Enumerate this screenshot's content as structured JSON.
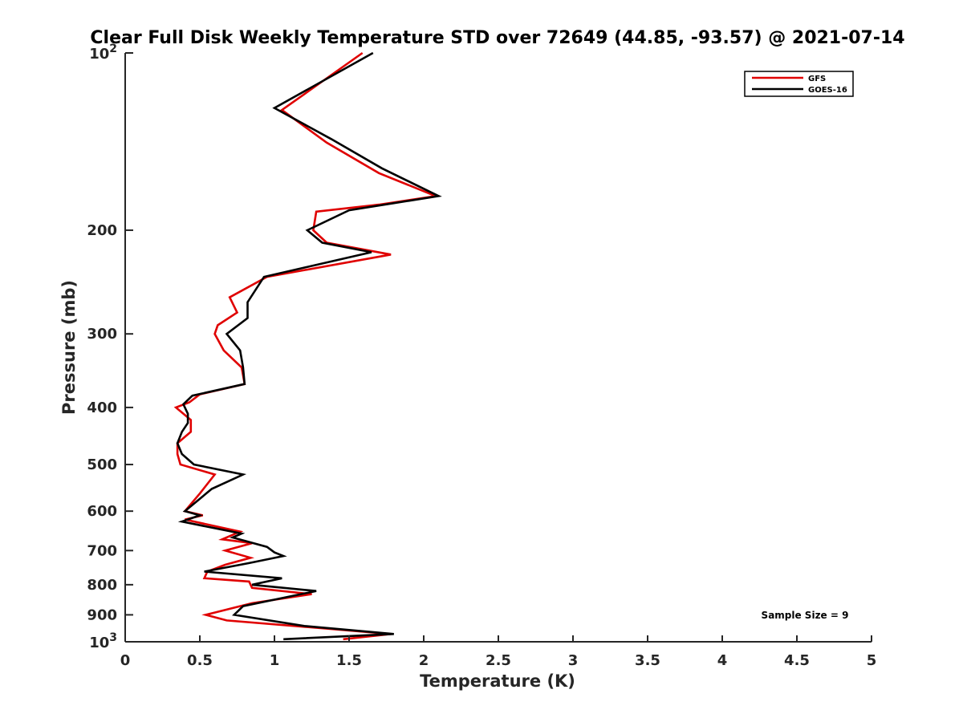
{
  "chart_data": {
    "type": "line",
    "title": "Clear Full Disk Weekly Temperature STD over 72649 (44.85, -93.57) @ 2021-07-14",
    "xlabel": "Temperature (K)",
    "ylabel": "Pressure (mb)",
    "xlim": [
      0,
      5
    ],
    "ylim": [
      100,
      1000
    ],
    "y_scale": "log",
    "y_reversed": true,
    "grid": false,
    "legend_position": "top-right",
    "x_ticks": [
      0,
      0.5,
      1,
      1.5,
      2,
      2.5,
      3,
      3.5,
      4,
      4.5,
      5
    ],
    "x_tick_labels": [
      "0",
      "0.5",
      "1",
      "1.5",
      "2",
      "2.5",
      "3",
      "3.5",
      "4",
      "4.5",
      "5"
    ],
    "y_ticks": [
      200,
      300,
      400,
      500,
      600,
      700,
      800,
      900
    ],
    "y_tick_labels": [
      "200",
      "300",
      "400",
      "500",
      "600",
      "700",
      "800",
      "900"
    ],
    "y_decade_labels": [
      {
        "value": 100,
        "base": "10",
        "exp": "2"
      },
      {
        "value": 1000,
        "base": "10",
        "exp": "3"
      }
    ],
    "series": [
      {
        "name": "GFS",
        "color": "#e00000",
        "points": [
          [
            1.59,
            100
          ],
          [
            1.05,
            125
          ],
          [
            1.35,
            142
          ],
          [
            1.7,
            160
          ],
          [
            2.08,
            175
          ],
          [
            1.7,
            181
          ],
          [
            1.28,
            186
          ],
          [
            1.26,
            200
          ],
          [
            1.35,
            210
          ],
          [
            1.78,
            220
          ],
          [
            0.95,
            240
          ],
          [
            0.7,
            260
          ],
          [
            0.75,
            276
          ],
          [
            0.62,
            290
          ],
          [
            0.6,
            300
          ],
          [
            0.66,
            320
          ],
          [
            0.78,
            342
          ],
          [
            0.8,
            365
          ],
          [
            0.5,
            380
          ],
          [
            0.43,
            392
          ],
          [
            0.34,
            400
          ],
          [
            0.44,
            420
          ],
          [
            0.44,
            440
          ],
          [
            0.35,
            460
          ],
          [
            0.35,
            480
          ],
          [
            0.37,
            500
          ],
          [
            0.6,
            520
          ],
          [
            0.5,
            560
          ],
          [
            0.4,
            600
          ],
          [
            0.52,
            610
          ],
          [
            0.4,
            620
          ],
          [
            0.77,
            650
          ],
          [
            0.65,
            670
          ],
          [
            0.85,
            680
          ],
          [
            0.67,
            700
          ],
          [
            0.84,
            720
          ],
          [
            0.67,
            740
          ],
          [
            0.55,
            760
          ],
          [
            0.53,
            780
          ],
          [
            0.83,
            790
          ],
          [
            0.85,
            810
          ],
          [
            1.25,
            830
          ],
          [
            0.85,
            860
          ],
          [
            0.54,
            900
          ],
          [
            0.68,
            920
          ],
          [
            1.35,
            950
          ],
          [
            1.78,
            970
          ],
          [
            1.46,
            990
          ]
        ]
      },
      {
        "name": "GOES-16",
        "color": "#000000",
        "points": [
          [
            1.66,
            100
          ],
          [
            1.0,
            124
          ],
          [
            1.38,
            140
          ],
          [
            1.72,
            157
          ],
          [
            2.1,
            175
          ],
          [
            1.5,
            185
          ],
          [
            1.22,
            200
          ],
          [
            1.32,
            210
          ],
          [
            1.65,
            218
          ],
          [
            0.93,
            240
          ],
          [
            0.82,
            265
          ],
          [
            0.82,
            282
          ],
          [
            0.68,
            300
          ],
          [
            0.77,
            320
          ],
          [
            0.79,
            342
          ],
          [
            0.8,
            365
          ],
          [
            0.45,
            382
          ],
          [
            0.39,
            395
          ],
          [
            0.42,
            410
          ],
          [
            0.42,
            425
          ],
          [
            0.38,
            440
          ],
          [
            0.35,
            460
          ],
          [
            0.38,
            480
          ],
          [
            0.46,
            500
          ],
          [
            0.79,
            520
          ],
          [
            0.58,
            550
          ],
          [
            0.4,
            600
          ],
          [
            0.5,
            610
          ],
          [
            0.38,
            625
          ],
          [
            0.78,
            655
          ],
          [
            0.72,
            665
          ],
          [
            0.95,
            690
          ],
          [
            1.0,
            705
          ],
          [
            1.06,
            715
          ],
          [
            0.83,
            735
          ],
          [
            0.53,
            760
          ],
          [
            1.05,
            780
          ],
          [
            0.85,
            800
          ],
          [
            1.28,
            820
          ],
          [
            0.79,
            870
          ],
          [
            0.73,
            900
          ],
          [
            1.2,
            940
          ],
          [
            1.8,
            970
          ],
          [
            1.06,
            990
          ]
        ]
      }
    ],
    "annotation": "Sample Size = 9"
  }
}
